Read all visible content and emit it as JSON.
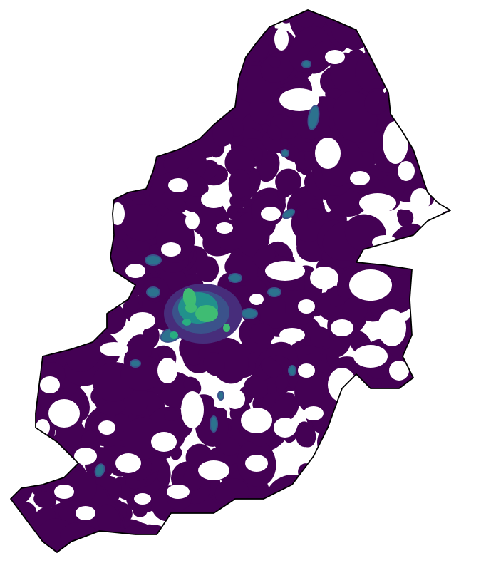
{
  "map": {
    "kind": "kernel-density-heatmap",
    "region_outline_color": "#000000",
    "colormap": "viridis",
    "background": "#ffffff",
    "density_levels": [
      {
        "level": 1,
        "color": "#440154"
      },
      {
        "level": 2,
        "color": "#472d7b"
      },
      {
        "level": 3,
        "color": "#3b528b"
      },
      {
        "level": 4,
        "color": "#2c728e"
      },
      {
        "level": 5,
        "color": "#21918c"
      },
      {
        "level": 6,
        "color": "#28ae80"
      },
      {
        "level": 7,
        "color": "#3fbc73"
      }
    ],
    "legend": null,
    "title": ""
  }
}
